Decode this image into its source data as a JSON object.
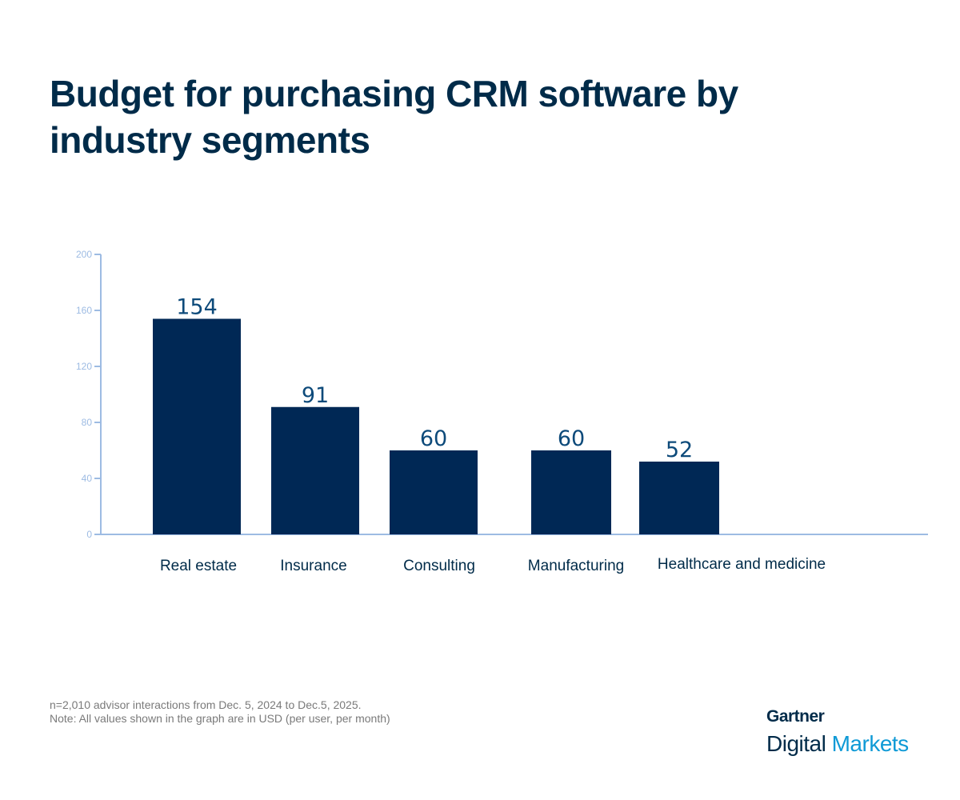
{
  "title": "Budget for purchasing CRM software by industry segments",
  "chart_data": {
    "type": "bar",
    "title": "Budget for purchasing CRM software by industry segments",
    "categories": [
      "Real estate",
      "Insurance",
      "Consulting",
      "Manufacturing",
      "Healthcare and medicine"
    ],
    "values": [
      154,
      91,
      60,
      60,
      52
    ],
    "data_labels": [
      "154",
      "91",
      "60",
      "60",
      "52"
    ],
    "xlabel": "",
    "ylabel": "",
    "ylim": [
      0,
      200
    ],
    "yticks": [
      0,
      40,
      80,
      120,
      160,
      200
    ],
    "grid": false,
    "colors": {
      "bar": "#002855",
      "axis": "#9dbbe3",
      "tick_label": "#9dbbe3",
      "data_label": "#0d4a7a",
      "category_label": "#002b49"
    }
  },
  "footer": {
    "note1": "n=2,010 advisor interactions from Dec. 5, 2024 to Dec.5, 2025.",
    "note2": "Note: All values shown in the graph are in USD (per user, per month)"
  },
  "logo": {
    "line1": "Gartner",
    "line2a": "Digital",
    "line2b": "Markets"
  }
}
